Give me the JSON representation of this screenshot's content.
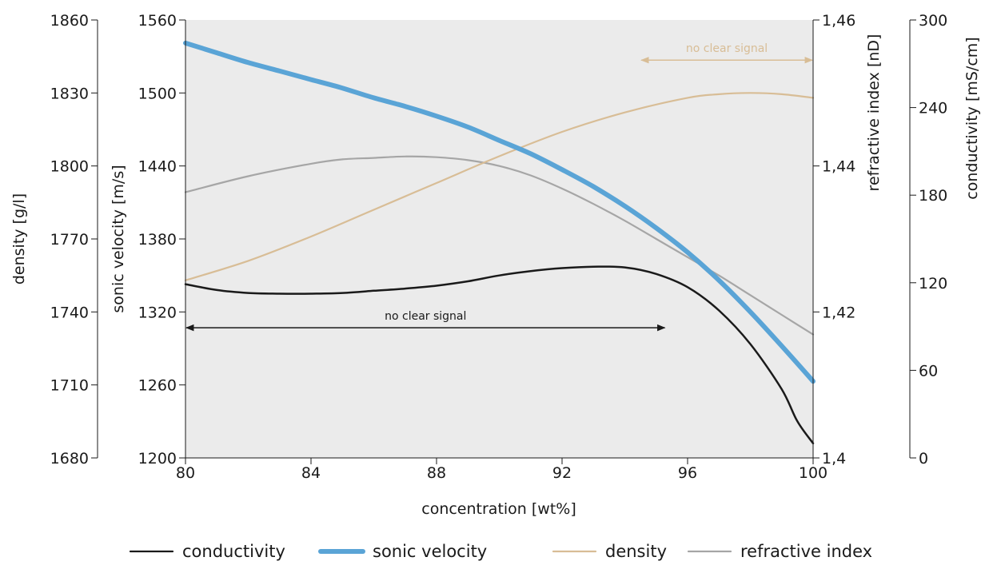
{
  "chart_data": {
    "type": "line",
    "xlabel": "concentration [wt%]",
    "x_ticks": [
      "80",
      "84",
      "88",
      "92",
      "96",
      "100"
    ],
    "xlim": [
      80,
      100
    ],
    "axes": {
      "density": {
        "label": "density [g/l]",
        "lim": [
          1680,
          1860
        ],
        "ticks": [
          "1680",
          "1710",
          "1740",
          "1770",
          "1800",
          "1830",
          "1860"
        ]
      },
      "sonic_velocity": {
        "label": "sonic velocity [m/s]",
        "lim": [
          1200,
          1560
        ],
        "ticks": [
          "1200",
          "1260",
          "1320",
          "1380",
          "1440",
          "1500",
          "1560"
        ]
      },
      "refractive_index": {
        "label": "refractive index [nD]",
        "lim": [
          1.4,
          1.46
        ],
        "ticks": [
          "1,4",
          "1,42",
          "1,44",
          "1,46"
        ]
      },
      "conductivity": {
        "label": "conductivity [mS/cm]",
        "lim": [
          0,
          300
        ],
        "ticks": [
          "0",
          "60",
          "120",
          "180",
          "240",
          "300"
        ]
      }
    },
    "series": [
      {
        "name": "conductivity",
        "axis": "conductivity",
        "color": "#1a1a1a",
        "x": [
          80,
          81,
          82,
          83,
          84,
          85,
          86,
          87,
          88,
          89,
          90,
          91,
          92,
          93,
          94,
          95,
          96,
          97,
          98,
          99,
          99.5,
          100
        ],
        "y": [
          119,
          115,
          113,
          112.5,
          112.5,
          113,
          114.5,
          116,
          118,
          121,
          125,
          128,
          130,
          131,
          130.5,
          126,
          117,
          101,
          78,
          47,
          25,
          10
        ]
      },
      {
        "name": "sonic velocity",
        "axis": "sonic_velocity",
        "color": "#5aa4d6",
        "x": [
          80,
          81,
          82,
          83,
          84,
          85,
          86,
          87,
          88,
          89,
          90,
          91,
          92,
          93,
          94,
          95,
          96,
          97,
          98,
          99,
          100
        ],
        "y": [
          1541,
          1533,
          1525,
          1518,
          1511,
          1504,
          1496,
          1489,
          1481,
          1472,
          1461,
          1450,
          1437,
          1423,
          1407,
          1389,
          1369,
          1346,
          1320,
          1292,
          1263
        ]
      },
      {
        "name": "density",
        "axis": "density",
        "color": "#d8bd96",
        "x": [
          80,
          82,
          84,
          86,
          88,
          90,
          92,
          94,
          96,
          97,
          98,
          99,
          100
        ],
        "y": [
          1753,
          1761,
          1771,
          1782,
          1793,
          1804,
          1814,
          1822,
          1828,
          1829.5,
          1830,
          1829.5,
          1828
        ]
      },
      {
        "name": "refractive index",
        "axis": "refractive_index",
        "color": "#a6a6a6",
        "x": [
          80,
          82,
          84,
          85,
          86,
          87,
          88,
          89,
          90,
          91,
          92,
          93,
          94,
          95,
          96,
          97,
          98,
          99,
          100
        ],
        "y": [
          1.4364,
          1.4386,
          1.4403,
          1.4409,
          1.4411,
          1.4413,
          1.4412,
          1.4408,
          1.44,
          1.4387,
          1.4369,
          1.4348,
          1.4325,
          1.43,
          1.4275,
          1.425,
          1.4223,
          1.4196,
          1.4169
        ]
      }
    ],
    "annotations": [
      {
        "text": "no clear signal",
        "color": "#1a1a1a",
        "x_from": 80,
        "x_to": 95.3,
        "y_axis": "sonic_velocity",
        "y": 1307
      },
      {
        "text": "no clear signal",
        "color": "#d8bd96",
        "x_from": 94.5,
        "x_to": 100,
        "y_axis": "sonic_velocity",
        "y": 1527
      }
    ],
    "legend": {
      "placement": "bottom",
      "entries": [
        "conductivity",
        "sonic velocity",
        "density",
        "refractive index"
      ]
    },
    "background": "#ebebeb"
  }
}
